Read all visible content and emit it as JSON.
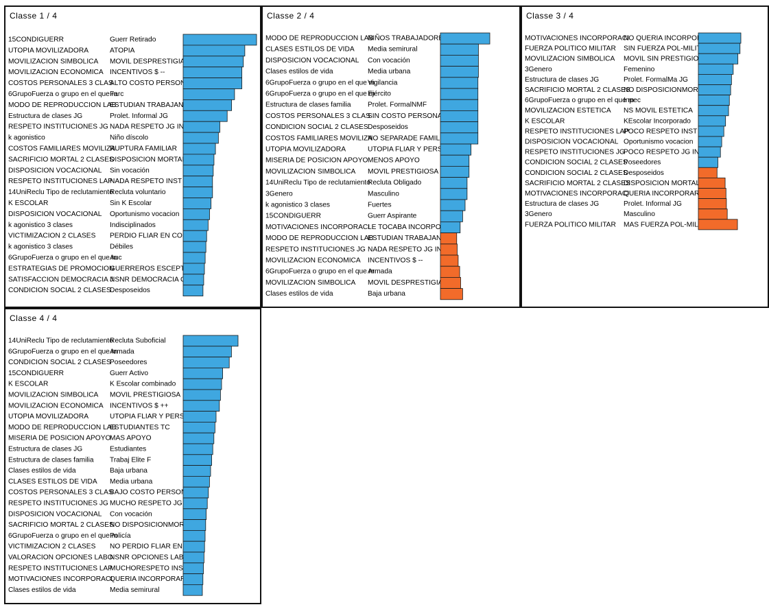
{
  "colors": {
    "positive": "#3FA7E0",
    "negative": "#F26B2A",
    "bar_border": "#1a1a1a"
  },
  "chart_data": [
    {
      "type": "bar",
      "orientation": "horizontal",
      "title": "Classe 1 / 4",
      "rows": [
        {
          "variable": "15CONDIGUERR",
          "category": "Guerr Retirado",
          "value": 100,
          "sign": "positive"
        },
        {
          "variable": "UTOPIA MOVILIZADORA",
          "category": "ATOPIA",
          "value": 84,
          "sign": "positive"
        },
        {
          "variable": "MOVILIZACION SIMBOLICA",
          "category": "MOVIL DESPRESTIGIAD",
          "value": 82,
          "sign": "positive"
        },
        {
          "variable": "MOVILIZACION ECONOMICA",
          "category": "INCENTIVOS $ --",
          "value": 80,
          "sign": "positive"
        },
        {
          "variable": "COSTOS PERSONALES 3 CLAS",
          "category": "ALTO COSTO PERSON",
          "value": 80,
          "sign": "positive"
        },
        {
          "variable": "6GrupoFuerza o grupo en el que m",
          "category": "Farc",
          "value": 70,
          "sign": "positive"
        },
        {
          "variable": "MODO DE REPRODUCCION LAB",
          "category": "ESTUDIAN TRABAJAN",
          "value": 66,
          "sign": "positive"
        },
        {
          "variable": "Estructura de clases JG",
          "category": "Prolet. Informal JG",
          "value": 60,
          "sign": "positive"
        },
        {
          "variable": "RESPETO INSTITUCIONES JG",
          "category": "NADA RESPETO JG IN",
          "value": 50,
          "sign": "positive"
        },
        {
          "variable": "k agonistico",
          "category": "Niño díscolo",
          "value": 48,
          "sign": "positive"
        },
        {
          "variable": "COSTOS FAMILIARES MOVILIZA",
          "category": "RUPTURA FAMILIAR",
          "value": 44,
          "sign": "positive"
        },
        {
          "variable": "SACRIFICIO MORTAL 2 CLASES",
          "category": "DISPOSICION MORTAL",
          "value": 42,
          "sign": "positive"
        },
        {
          "variable": "DISPOSICION VOCACIONAL",
          "category": "Sin vocación",
          "value": 41,
          "sign": "positive"
        },
        {
          "variable": "RESPETO INSTITUCIONES LAP",
          "category": "NADA RESPETO INST L",
          "value": 40,
          "sign": "positive"
        },
        {
          "variable": "14UniReclu Tipo de reclutamiento",
          "category": "Recluta voluntario",
          "value": 40,
          "sign": "positive"
        },
        {
          "variable": "K ESCOLAR",
          "category": "Sin K Escolar",
          "value": 38,
          "sign": "positive"
        },
        {
          "variable": "DISPOSICION VOCACIONAL",
          "category": "Oportunismo vocacion",
          "value": 36,
          "sign": "positive"
        },
        {
          "variable": "k agonistico 3 clases",
          "category": "Indisciplinados",
          "value": 34,
          "sign": "positive"
        },
        {
          "variable": "VICTIMIZACION 2 CLASES",
          "category": "PERDIO FLIAR EN CON",
          "value": 32,
          "sign": "positive"
        },
        {
          "variable": "k agonistico 3 clases",
          "category": "Débiles",
          "value": 31,
          "sign": "positive"
        },
        {
          "variable": "6GrupoFuerza o grupo en el que m",
          "category": "Auc",
          "value": 30,
          "sign": "positive"
        },
        {
          "variable": "ESTRATEGIAS DE PROMOCION",
          "category": "GUERREROS ESCEPTI",
          "value": 29,
          "sign": "positive"
        },
        {
          "variable": "SATISFACCION DEMOCRACIA J",
          "category": "NSNR DEMOCRACIA C",
          "value": 28,
          "sign": "positive"
        },
        {
          "variable": "CONDICION SOCIAL 2 CLASES",
          "category": "Desposeidos",
          "value": 27,
          "sign": "positive"
        }
      ]
    },
    {
      "type": "bar",
      "orientation": "horizontal",
      "title": "Classe 2 / 4",
      "rows": [
        {
          "variable": "MODO DE REPRODUCCION LAB",
          "category": "NIÑOS TRABAJADORE",
          "value": 100,
          "sign": "positive"
        },
        {
          "variable": "CLASES ESTILOS DE VIDA",
          "category": "Media semirural",
          "value": 77,
          "sign": "positive"
        },
        {
          "variable": "DISPOSICION VOCACIONAL",
          "category": "Con vocación",
          "value": 77,
          "sign": "positive"
        },
        {
          "variable": "Clases estilos de vida",
          "category": "Media urbana",
          "value": 77,
          "sign": "positive"
        },
        {
          "variable": "6GrupoFuerza o grupo en el que m",
          "category": "Vigilancia",
          "value": 76,
          "sign": "positive"
        },
        {
          "variable": "6GrupoFuerza o grupo en el que m",
          "category": "Ejército",
          "value": 76,
          "sign": "positive"
        },
        {
          "variable": "Estructura de clases familia",
          "category": "Prolet. FormalNMF",
          "value": 76,
          "sign": "positive"
        },
        {
          "variable": "COSTOS PERSONALES 3 CLAS",
          "category": "SIN COSTO PERSONAL",
          "value": 76,
          "sign": "positive"
        },
        {
          "variable": "CONDICION SOCIAL 2 CLASES",
          "category": "Desposeidos",
          "value": 76,
          "sign": "positive"
        },
        {
          "variable": "COSTOS FAMILIARES MOVILIZA",
          "category": "NO SEPARADE FAMILIA",
          "value": 76,
          "sign": "positive"
        },
        {
          "variable": "UTOPIA MOVILIZADORA",
          "category": "UTOPIA FLIAR Y PERS",
          "value": 62,
          "sign": "positive"
        },
        {
          "variable": "MISERIA DE POSICION APOYO",
          "category": "MENOS APOYO",
          "value": 58,
          "sign": "positive"
        },
        {
          "variable": "MOVILIZACION SIMBOLICA",
          "category": "MOVIL PRESTIGIOSA",
          "value": 58,
          "sign": "positive"
        },
        {
          "variable": "14UniReclu Tipo de reclutamiento",
          "category": "Recluta Obligado",
          "value": 54,
          "sign": "positive"
        },
        {
          "variable": "3Genero",
          "category": "Masculino",
          "value": 54,
          "sign": "positive"
        },
        {
          "variable": "k agonistico 3 clases",
          "category": "Fuertes",
          "value": 50,
          "sign": "positive"
        },
        {
          "variable": "15CONDIGUERR",
          "category": "Guerr Aspirante",
          "value": 45,
          "sign": "positive"
        },
        {
          "variable": "MOTIVACIONES INCORPORACI",
          "category": "LE TOCABA INCORPOR",
          "value": 40,
          "sign": "positive"
        },
        {
          "variable": "MODO DE REPRODUCCION LAB",
          "category": "ESTUDIAN TRABAJAN",
          "value": 33,
          "sign": "negative"
        },
        {
          "variable": "RESPETO INSTITUCIONES JG",
          "category": "NADA RESPETO JG IN",
          "value": 34,
          "sign": "negative"
        },
        {
          "variable": "MOVILIZACION ECONOMICA",
          "category": "INCENTIVOS $ --",
          "value": 36,
          "sign": "negative"
        },
        {
          "variable": "6GrupoFuerza o grupo en el que m",
          "category": "Armada",
          "value": 39,
          "sign": "negative"
        },
        {
          "variable": "MOVILIZACION SIMBOLICA",
          "category": "MOVIL DESPRESTIGIAD",
          "value": 41,
          "sign": "negative"
        },
        {
          "variable": "Clases estilos de vida",
          "category": "Baja urbana",
          "value": 45,
          "sign": "negative"
        }
      ]
    },
    {
      "type": "bar",
      "orientation": "horizontal",
      "title": "Classe 3 / 4",
      "rows": [
        {
          "variable": "MOTIVACIONES INCORPORACI",
          "category": "NO QUERIA INCORPOR",
          "value": 100,
          "sign": "positive"
        },
        {
          "variable": "FUERZA POLITICO MILITAR",
          "category": "SIN FUERZA POL-MILIT",
          "value": 98,
          "sign": "positive"
        },
        {
          "variable": "MOVILIZACION SIMBOLICA",
          "category": "MOVIL SIN PRESTIGIO",
          "value": 93,
          "sign": "positive"
        },
        {
          "variable": "3Genero",
          "category": "Femenino",
          "value": 82,
          "sign": "positive"
        },
        {
          "variable": "Estructura de clases JG",
          "category": "Prolet. FormalMa JG",
          "value": 78,
          "sign": "positive"
        },
        {
          "variable": "SACRIFICIO MORTAL 2 CLASES",
          "category": "NO DISPOSICIONMORT",
          "value": 76,
          "sign": "positive"
        },
        {
          "variable": "6GrupoFuerza o grupo en el que m",
          "category": "Inpec",
          "value": 73,
          "sign": "positive"
        },
        {
          "variable": "MOVILIZACION ESTETICA",
          "category": "NS MOVIL ESTETICA",
          "value": 71,
          "sign": "positive"
        },
        {
          "variable": "K ESCOLAR",
          "category": "KEscolar Incorporado",
          "value": 64,
          "sign": "positive"
        },
        {
          "variable": "RESPETO INSTITUCIONES LAP",
          "category": "POCO RESPETO INST L",
          "value": 60,
          "sign": "positive"
        },
        {
          "variable": "DISPOSICION VOCACIONAL",
          "category": "Oportunismo vocacion",
          "value": 55,
          "sign": "positive"
        },
        {
          "variable": "RESPETO INSTITUCIONES JG",
          "category": "POCO RESPETO JG IN",
          "value": 52,
          "sign": "positive"
        },
        {
          "variable": "CONDICION SOCIAL 2 CLASES",
          "category": "Poseedores",
          "value": 46,
          "sign": "positive"
        },
        {
          "variable": "CONDICION SOCIAL 2 CLASES",
          "category": "Desposeidos",
          "value": 44,
          "sign": "negative"
        },
        {
          "variable": "SACRIFICIO MORTAL 2 CLASES",
          "category": "DISPOSICION MORTAL",
          "value": 63,
          "sign": "negative"
        },
        {
          "variable": "MOTIVACIONES INCORPORACI",
          "category": "QUERIA INCORPORAR",
          "value": 65,
          "sign": "negative"
        },
        {
          "variable": "Estructura de clases JG",
          "category": "Prolet. Informal JG",
          "value": 66,
          "sign": "negative"
        },
        {
          "variable": "3Genero",
          "category": "Masculino",
          "value": 68,
          "sign": "negative"
        },
        {
          "variable": "FUERZA POLITICO MILITAR",
          "category": "MAS FUERZA POL-MILI",
          "value": 92,
          "sign": "negative"
        }
      ]
    },
    {
      "type": "bar",
      "orientation": "horizontal",
      "title": "Classe 4 / 4",
      "rows": [
        {
          "variable": "14UniReclu Tipo de reclutamiento",
          "category": "Recluta Suboficial",
          "value": 100,
          "sign": "positive"
        },
        {
          "variable": "6GrupoFuerza o grupo en el que m",
          "category": "Armada",
          "value": 88,
          "sign": "positive"
        },
        {
          "variable": "CONDICION SOCIAL 2 CLASES",
          "category": "Poseedores",
          "value": 84,
          "sign": "positive"
        },
        {
          "variable": "15CONDIGUERR",
          "category": "Guerr Activo",
          "value": 72,
          "sign": "positive"
        },
        {
          "variable": "K ESCOLAR",
          "category": "K Escolar combinado",
          "value": 70,
          "sign": "positive"
        },
        {
          "variable": "MOVILIZACION SIMBOLICA",
          "category": "MOVIL PRESTIGIOSA",
          "value": 68,
          "sign": "positive"
        },
        {
          "variable": "MOVILIZACION ECONOMICA",
          "category": "INCENTIVOS $ ++",
          "value": 66,
          "sign": "positive"
        },
        {
          "variable": "UTOPIA MOVILIZADORA",
          "category": "UTOPIA FLIAR Y PERS",
          "value": 60,
          "sign": "positive"
        },
        {
          "variable": "MODO DE REPRODUCCION LAB",
          "category": "ESTUDIANTES TC",
          "value": 58,
          "sign": "positive"
        },
        {
          "variable": "MISERIA DE POSICION APOYO",
          "category": "MAS APOYO",
          "value": 56,
          "sign": "positive"
        },
        {
          "variable": "Estructura de clases JG",
          "category": "Estudiantes",
          "value": 54,
          "sign": "positive"
        },
        {
          "variable": "Estructura de clases familia",
          "category": "Trabaj Elite F",
          "value": 52,
          "sign": "positive"
        },
        {
          "variable": "Clases estilos de vida",
          "category": "Baja urbana",
          "value": 50,
          "sign": "positive"
        },
        {
          "variable": "CLASES ESTILOS DE VIDA",
          "category": "Media urbana",
          "value": 48,
          "sign": "positive"
        },
        {
          "variable": "COSTOS PERSONALES 3 CLAS",
          "category": "BAJO COSTO PERSON",
          "value": 46,
          "sign": "positive"
        },
        {
          "variable": "RESPETO INSTITUCIONES JG",
          "category": "MUCHO RESPETO JG I",
          "value": 44,
          "sign": "positive"
        },
        {
          "variable": "DISPOSICION VOCACIONAL",
          "category": "Con vocación",
          "value": 42,
          "sign": "positive"
        },
        {
          "variable": "SACRIFICIO MORTAL 2 CLASES",
          "category": "NO DISPOSICIONMORT",
          "value": 41,
          "sign": "positive"
        },
        {
          "variable": "6GrupoFuerza o grupo en el que m",
          "category": "Policía",
          "value": 40,
          "sign": "positive"
        },
        {
          "variable": "VICTIMIZACION 2 CLASES",
          "category": "NO PERDIO FLIAR EN C",
          "value": 39,
          "sign": "positive"
        },
        {
          "variable": "VALORACION OPCIONES LABO",
          "category": "NSNR OPCIONES LABO",
          "value": 38,
          "sign": "positive"
        },
        {
          "variable": "RESPETO INSTITUCIONES LAP",
          "category": "MUCHORESPETO INST",
          "value": 37,
          "sign": "positive"
        },
        {
          "variable": "MOTIVACIONES INCORPORACI",
          "category": "QUERIA INCORPORAR",
          "value": 36,
          "sign": "positive"
        },
        {
          "variable": "Clases estilos de vida",
          "category": "Media semirural",
          "value": 35,
          "sign": "positive"
        }
      ]
    }
  ]
}
